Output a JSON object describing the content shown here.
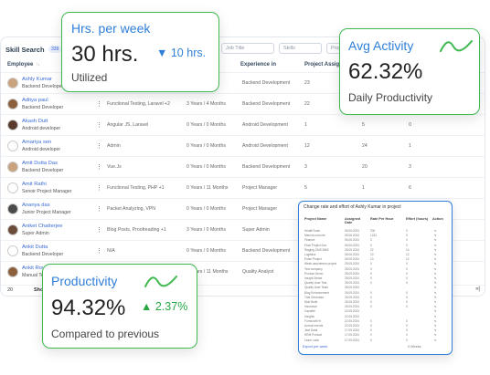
{
  "table": {
    "title": "Skill Search",
    "count": "339",
    "filters": [
      "Job Title",
      "Skills",
      "Proj"
    ],
    "columns": [
      "Employee",
      "Experience in",
      "Project Assign"
    ],
    "sort_marker": "↑↓",
    "rows": [
      {
        "name": "Ashly Kumar",
        "role": "Backend Developer",
        "skills": "",
        "exp": "",
        "area": "Backend Development",
        "proj": "23",
        "avatar": "#c9a27e"
      },
      {
        "name": "Aditya paul",
        "role": "Backend Developer",
        "skills": "Functional Testing, Laravel +2",
        "exp": "3 Years / 4 Months",
        "area": "Backend Development",
        "proj": "22",
        "avatar": "#8b5e3c"
      },
      {
        "name": "Akash Dutt",
        "role": "Android developer",
        "skills": "Angular JS, Laravel",
        "exp": "0 Years / 0 Months",
        "area": "Android Development",
        "proj": "1",
        "c5": "5",
        "c6": "0",
        "avatar": "#5b3a2e"
      },
      {
        "name": "Amariya sen",
        "role": "Android developer",
        "skills": "Admin",
        "exp": "0 Years / 0 Months",
        "area": "Android Development",
        "proj": "12",
        "c5": "24",
        "c6": "1",
        "avatar": "#ffffff"
      },
      {
        "name": "Amit Dutta Das",
        "role": "Backend Developer",
        "skills": "Vue.Js",
        "exp": "0 Years / 0 Months",
        "area": "Backend Development",
        "proj": "3",
        "c5": "20",
        "c6": "3",
        "avatar": "#c9a27e"
      },
      {
        "name": "Amit Rathi",
        "role": "Senoir Project Manager",
        "skills": "Functional Testing, PHP +1",
        "exp": "0 Years / 11 Months",
        "area": "Project Manager",
        "proj": "5",
        "c5": "1",
        "c6": "6",
        "avatar": "#ffffff"
      },
      {
        "name": "Ananya das",
        "role": "Junior Project Manager",
        "skills": "Packet Analyzing, VPN",
        "exp": "0 Years / 0 Months",
        "area": "Project Manager",
        "proj": "",
        "avatar": "#4a4a4a"
      },
      {
        "name": "Aniket Chatterjee",
        "role": "Super Admin",
        "skills": "Blog Posts, Proofreading +1",
        "exp": "3 Years / 0 Months",
        "area": "Super Admin",
        "proj": "",
        "avatar": "#6b4b3a"
      },
      {
        "name": "Ankit Dutta",
        "role": "Backend Developer",
        "skills": "N/A",
        "exp": "0 Years / 0 Months",
        "area": "Backend Development",
        "proj": "",
        "avatar": "#ffffff"
      },
      {
        "name": "Ankit Roy",
        "role": "Manual Tes",
        "skills": "",
        "exp": "0 Years / 11 Months",
        "area": "Quality Analyst",
        "proj": "",
        "avatar": "#8b5e3c"
      }
    ],
    "page_size": "20",
    "show_label": "Sho",
    "next": "»|"
  },
  "hrs_card": {
    "title": "Hrs. per week",
    "value": "30 hrs.",
    "delta_icon": "triangle-down",
    "delta": "10 hrs.",
    "caption": "Utilized"
  },
  "avg_card": {
    "title": "Avg Activity",
    "value": "62.32%",
    "caption": "Daily Productivity"
  },
  "prod_card": {
    "title": "Productivity",
    "value": "94.32%",
    "delta_icon": "triangle-up",
    "delta": "2.37%",
    "caption": "Compared to previous"
  },
  "dialog": {
    "title": "Change rate and effort of Ashly Kumar in project",
    "headers": [
      "Project Name",
      "Assigned Date",
      "Rate Per Hour",
      "Effort (hours)",
      "Action"
    ],
    "rows": [
      {
        "p": "HealthTrack",
        "d": "06.06.2024",
        "r": "200",
        "e": "0"
      },
      {
        "p": "Marcus.com.me",
        "d": "05.06.2024",
        "r": "1222",
        "e": "0"
      },
      {
        "p": "Finance",
        "d": "06.06.2024",
        "r": "0",
        "e": "0"
      },
      {
        "p": "Final Project Doc",
        "d": "06.06.2024",
        "r": "0",
        "e": "0"
      },
      {
        "p": "Staging CMS BMS",
        "d": "28.05.2024",
        "r": "22",
        "e": "14"
      },
      {
        "p": "Logistics",
        "d": "05.06.2024",
        "r": "10",
        "e": "12"
      },
      {
        "p": "Pulse Project",
        "d": "05.06.2024",
        "r": "10",
        "e": "12"
      },
      {
        "p": "Week assortment project",
        "d": "29.05.2024",
        "r": "0",
        "e": "0"
      },
      {
        "p": "Test company",
        "d": "28.05.2024",
        "r": "0",
        "e": "0"
      },
      {
        "p": "Product Demo",
        "d": "28.05.2024",
        "r": "0",
        "e": "0"
      },
      {
        "p": "Insight Sense",
        "d": "28.05.2024",
        "r": "0",
        "e": "0"
      },
      {
        "p": "Quality User Test",
        "d": "28.05.2024",
        "r": "0",
        "e": "0"
      },
      {
        "p": "Quality User Team",
        "d": "28.05.2024",
        "r": "",
        "e": ""
      },
      {
        "p": "Blog Enhancement",
        "d": "26.05.2024",
        "r": "0",
        "e": "0"
      },
      {
        "p": "Trial Generator",
        "d": "26.05.2024",
        "r": "0",
        "e": "0"
      },
      {
        "p": "Mob Build",
        "d": "26.05.2024",
        "r": "0",
        "e": "0"
      },
      {
        "p": "Insurance",
        "d": "26.05.2024",
        "r": "0",
        "e": "0"
      },
      {
        "p": "Capable",
        "d": "22.05.2024",
        "r": "",
        "e": ""
      },
      {
        "p": "Insights",
        "d": "22.05.2024",
        "r": "",
        "e": ""
      },
      {
        "p": "Formcraft Hr",
        "d": "22.05.2024",
        "r": "0",
        "e": "0"
      },
      {
        "p": "Annual events",
        "d": "22.05.2024",
        "r": "0",
        "e": "0"
      },
      {
        "p": "Jeet Dalal",
        "d": "17.05.2024",
        "r": "0",
        "e": "0"
      },
      {
        "p": "HRM Product",
        "d": "17.05.2024",
        "r": "0",
        "e": "0"
      },
      {
        "p": "Learn Labs",
        "d": "17.05.2024",
        "r": "0",
        "e": "0"
      }
    ],
    "footer_left": "Export per week",
    "footer_right": "0 Weeks"
  },
  "colors": {
    "accent_blue": "#2f7fd8",
    "accent_green": "#3fb950",
    "positive": "#27a844"
  }
}
